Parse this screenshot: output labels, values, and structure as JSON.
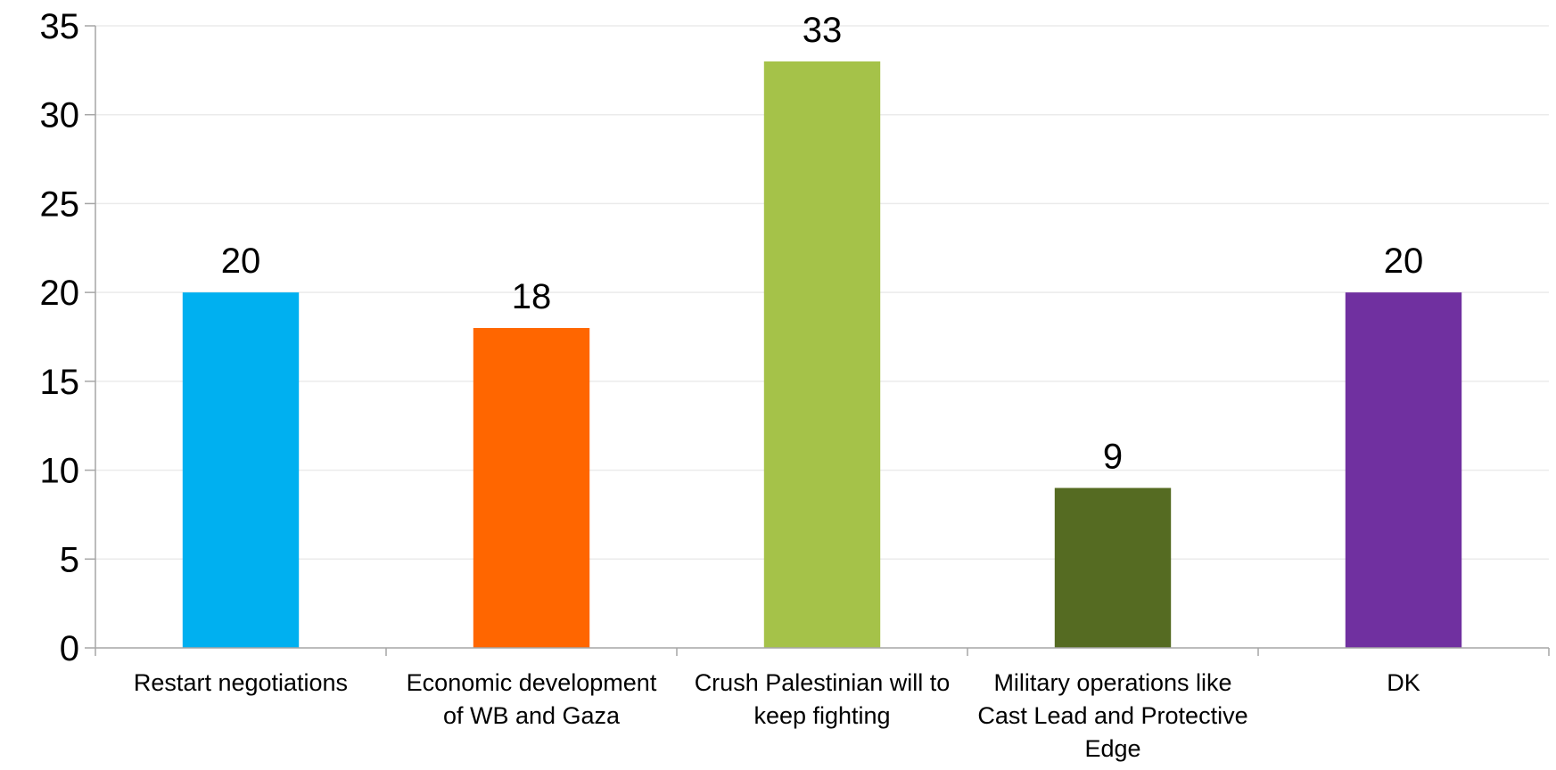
{
  "chart_data": {
    "type": "bar",
    "categories": [
      "Restart negotiations",
      "Economic development of WB and Gaza",
      "Crush Palestinian will to keep fighting",
      "Military operations like Cast Lead and Protective Edge",
      "DK"
    ],
    "category_label_lines": [
      [
        "Restart negotiations"
      ],
      [
        "Economic development",
        "of WB and Gaza"
      ],
      [
        "Crush Palestinian will to",
        "keep fighting"
      ],
      [
        "Military operations like",
        "Cast Lead and Protective",
        "Edge"
      ],
      [
        "DK"
      ]
    ],
    "values": [
      20,
      18,
      33,
      9,
      20
    ],
    "data_labels": [
      "20",
      "18",
      "33",
      "9",
      "20"
    ],
    "colors": [
      "#00B0F0",
      "#FF6600",
      "#A5C249",
      "#556B22",
      "#7030A0"
    ],
    "ylim": [
      0,
      35
    ],
    "yticks": [
      0,
      5,
      10,
      15,
      20,
      25,
      30,
      35
    ],
    "grid": true,
    "gridline_color": "#EBEBEB",
    "axis_color": "#A6A6A6",
    "title": "",
    "xlabel": "",
    "ylabel": ""
  }
}
